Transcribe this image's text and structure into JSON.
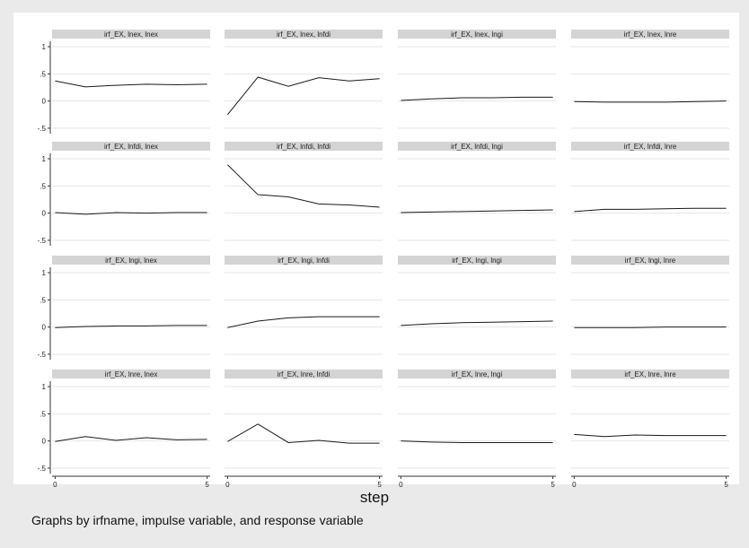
{
  "chart_data": {
    "type": "line",
    "x": [
      0,
      1,
      2,
      3,
      4,
      5
    ],
    "xlabel": "step",
    "note": "Graphs by irfname, impulse variable, and response variable",
    "ylim": [
      -0.6,
      1.1
    ],
    "xlim": [
      -0.1,
      5.1
    ],
    "yticks": [
      1,
      0.5,
      0,
      -0.5
    ],
    "ytick_labels": [
      "1",
      ".5",
      "0",
      "-.5"
    ],
    "xticks": [
      0,
      5
    ],
    "xtick_labels": [
      "0",
      "5"
    ],
    "grid": true,
    "line_color": "#1a1a1a",
    "panels": [
      {
        "title": "irf_EX, lnex, lnex",
        "values": [
          0.37,
          0.26,
          0.29,
          0.31,
          0.3,
          0.31
        ]
      },
      {
        "title": "irf_EX, lnex, lnfdi",
        "values": [
          -0.25,
          0.44,
          0.27,
          0.43,
          0.37,
          0.41
        ]
      },
      {
        "title": "irf_EX, lnex, lngi",
        "values": [
          0.01,
          0.04,
          0.06,
          0.06,
          0.07,
          0.07
        ]
      },
      {
        "title": "irf_EX, lnex, lnre",
        "values": [
          -0.01,
          -0.02,
          -0.02,
          -0.02,
          -0.01,
          0.0
        ]
      },
      {
        "title": "irf_EX, lnfdi, lnex",
        "values": [
          0.01,
          -0.02,
          0.01,
          0.0,
          0.01,
          0.01
        ]
      },
      {
        "title": "irf_EX, lnfdi, lnfdi",
        "values": [
          0.89,
          0.34,
          0.3,
          0.17,
          0.15,
          0.11
        ]
      },
      {
        "title": "irf_EX, lnfdi, lngi",
        "values": [
          0.01,
          0.02,
          0.03,
          0.04,
          0.05,
          0.06
        ]
      },
      {
        "title": "irf_EX, lnfdi, lnre",
        "values": [
          0.03,
          0.07,
          0.07,
          0.08,
          0.09,
          0.09
        ]
      },
      {
        "title": "irf_EX, lngi, lnex",
        "values": [
          -0.01,
          0.01,
          0.02,
          0.02,
          0.03,
          0.03
        ]
      },
      {
        "title": "irf_EX, lngi, lnfdi",
        "values": [
          -0.01,
          0.11,
          0.17,
          0.19,
          0.19,
          0.19
        ]
      },
      {
        "title": "irf_EX, lngi, lngi",
        "values": [
          0.03,
          0.06,
          0.08,
          0.09,
          0.1,
          0.11
        ]
      },
      {
        "title": "irf_EX, lngi, lnre",
        "values": [
          -0.01,
          -0.01,
          -0.01,
          0.0,
          0.0,
          0.0
        ]
      },
      {
        "title": "irf_EX, lnre, lnex",
        "values": [
          -0.01,
          0.08,
          0.01,
          0.06,
          0.02,
          0.03
        ]
      },
      {
        "title": "irf_EX, lnre, lnfdi",
        "values": [
          -0.01,
          0.31,
          -0.03,
          0.01,
          -0.04,
          -0.04
        ]
      },
      {
        "title": "irf_EX, lnre, lngi",
        "values": [
          0.0,
          -0.02,
          -0.03,
          -0.03,
          -0.03,
          -0.03
        ]
      },
      {
        "title": "irf_EX, lnre, lnre",
        "values": [
          0.12,
          0.08,
          0.11,
          0.1,
          0.1,
          0.1
        ]
      }
    ]
  }
}
